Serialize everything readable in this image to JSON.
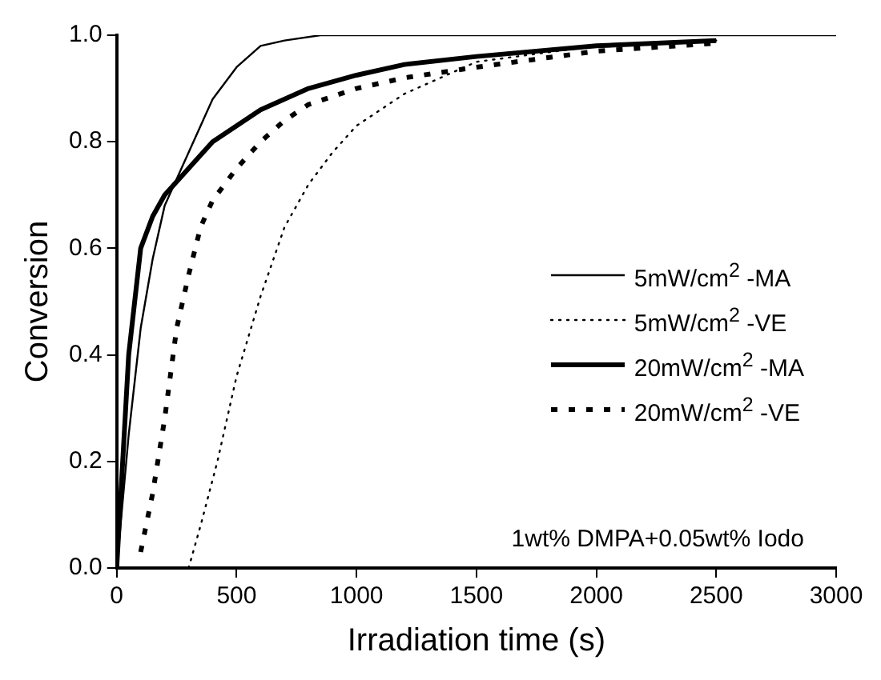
{
  "chart_data": {
    "type": "line",
    "xlabel": "Irradiation time (s)",
    "ylabel": "Conversion",
    "xlim": [
      0,
      3000
    ],
    "xticks": [
      0,
      500,
      1000,
      1500,
      2000,
      2500,
      3000
    ],
    "ylim": [
      0,
      1
    ],
    "yticks": [
      {
        "value": 0,
        "label": "0.0"
      },
      {
        "value": 0.2,
        "label": "0.2"
      },
      {
        "value": 0.4,
        "label": "0.4"
      },
      {
        "value": 0.6,
        "label": "0.6"
      },
      {
        "value": 0.8,
        "label": "0.8"
      },
      {
        "value": 1,
        "label": "1.0"
      }
    ],
    "grid": false,
    "legend": "right",
    "marker": "none",
    "annotations": [
      "1wt% DMPA+0.05wt% Iodo"
    ],
    "series": [
      {
        "name": "5mW/cm$^{2}$ -MA",
        "color": "#000000",
        "line_style": "solid",
        "x": [
          0,
          50,
          100,
          150,
          200,
          300,
          400,
          500,
          600,
          700,
          850,
          1000,
          1500,
          2000,
          2500,
          3000
        ],
        "values": [
          0,
          0.25,
          0.45,
          0.58,
          0.68,
          0.78,
          0.88,
          0.94,
          0.98,
          0.99,
          1,
          1,
          1,
          1,
          1,
          1
        ]
      },
      {
        "name": "5mW/cm$^{2}$ -VE",
        "color": "#000000",
        "line_style": "dotted",
        "x": [
          300,
          350,
          420,
          500,
          600,
          700,
          800,
          900,
          1000,
          1200,
          1500,
          2000,
          2500
        ],
        "values": [
          0,
          0.08,
          0.2,
          0.36,
          0.51,
          0.64,
          0.72,
          0.78,
          0.83,
          0.89,
          0.95,
          0.98,
          0.99
        ]
      },
      {
        "name": "20mW/cm$^{2}$ -MA",
        "color": "#000000",
        "line_style": "solid",
        "x": [
          0,
          25,
          50,
          100,
          150,
          200,
          300,
          400,
          500,
          600,
          800,
          1000,
          1200,
          1500,
          2000,
          2500
        ],
        "values": [
          0,
          0.2,
          0.4,
          0.6,
          0.66,
          0.7,
          0.75,
          0.8,
          0.83,
          0.86,
          0.9,
          0.925,
          0.945,
          0.96,
          0.98,
          0.99
        ]
      },
      {
        "name": "20mW/cm$^{2}$ -VE",
        "color": "#000000",
        "line_style": "dashed",
        "x": [
          100,
          150,
          200,
          250,
          300,
          350,
          400,
          500,
          600,
          700,
          800,
          1000,
          1200,
          1500,
          2000,
          2500
        ],
        "values": [
          0.03,
          0.14,
          0.28,
          0.45,
          0.55,
          0.64,
          0.69,
          0.75,
          0.8,
          0.84,
          0.87,
          0.9,
          0.92,
          0.94,
          0.97,
          0.985
        ]
      }
    ]
  }
}
